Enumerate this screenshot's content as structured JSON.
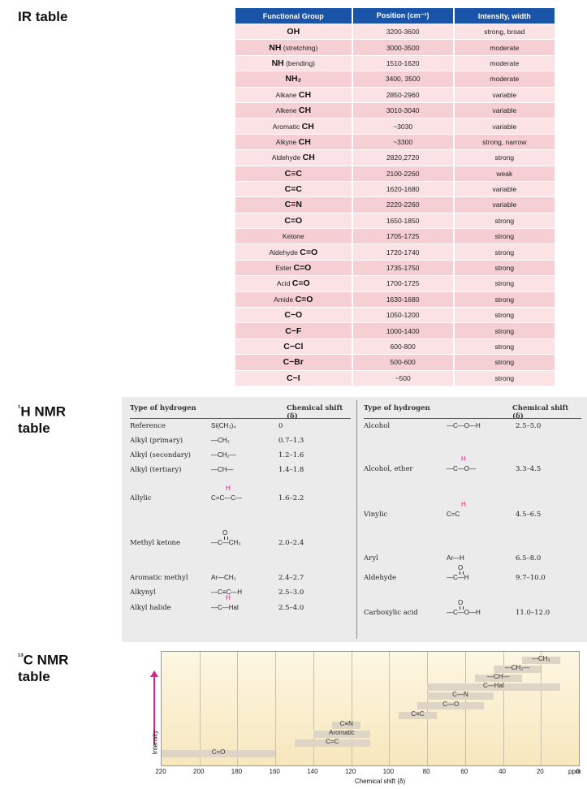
{
  "ir": {
    "title": "IR table",
    "headers": [
      "Functional Group",
      "Position (cm⁻¹)",
      "Intensity, width"
    ],
    "rows": [
      {
        "pre": "",
        "grp": "OH",
        "pos": "3200-3600",
        "int": "strong, broad"
      },
      {
        "pre": "",
        "grp": "NH",
        "post": " (stretching)",
        "pos": "3000-3500",
        "int": "moderate"
      },
      {
        "pre": "",
        "grp": "NH",
        "post": " (bending)",
        "pos": "1510-1620",
        "int": "moderate"
      },
      {
        "pre": "",
        "grp": "NH₂",
        "pos": "3400, 3500",
        "int": "moderate"
      },
      {
        "pre": "Alkane ",
        "grp": "CH",
        "pos": "2850-2960",
        "int": "variable"
      },
      {
        "pre": "Alkene ",
        "grp": "CH",
        "pos": "3010-3040",
        "int": "variable"
      },
      {
        "pre": "Aromatic ",
        "grp": "CH",
        "pos": "~3030",
        "int": "variable"
      },
      {
        "pre": "Alkyne ",
        "grp": "CH",
        "pos": "~3300",
        "int": "strong, narrow"
      },
      {
        "pre": "Aldehyde ",
        "grp": "CH",
        "pos": "2820,2720",
        "int": "strong"
      },
      {
        "pre": "",
        "grp": "C≡C",
        "pos": "2100-2260",
        "int": "weak"
      },
      {
        "pre": "",
        "grp": "C=C",
        "pos": "1620-1680",
        "int": "variable"
      },
      {
        "pre": "",
        "grp": "C≡N",
        "pos": "2220-2260",
        "int": "variable"
      },
      {
        "pre": "",
        "grp": "C=O",
        "pos": "1650-1850",
        "int": "strong"
      },
      {
        "pre": "Ketone",
        "grp": "",
        "pos": "1705-1725",
        "int": "strong"
      },
      {
        "pre": "Aldehyde ",
        "grp": "C=O",
        "pos": "1720-1740",
        "int": "strong"
      },
      {
        "pre": "Ester ",
        "grp": "C=O",
        "pos": "1735-1750",
        "int": "strong"
      },
      {
        "pre": "Acid ",
        "grp": "C=O",
        "pos": "1700-1725",
        "int": "strong"
      },
      {
        "pre": "Amide ",
        "grp": "C=O",
        "pos": "1630-1680",
        "int": "strong"
      },
      {
        "pre": "",
        "grp": "C−O",
        "pos": "1050-1200",
        "int": "strong"
      },
      {
        "pre": "",
        "grp": "C−F",
        "pos": "1000-1400",
        "int": "strong"
      },
      {
        "pre": "",
        "grp": "C−Cl",
        "pos": "600-800",
        "int": "strong"
      },
      {
        "pre": "",
        "grp": "C−Br",
        "pos": "500-600",
        "int": "strong"
      },
      {
        "pre": "",
        "grp": "C−I",
        "pos": "~500",
        "int": "strong"
      }
    ]
  },
  "hnmr": {
    "title_sup": "¹",
    "title_main": "H NMR",
    "title_line2": "table",
    "col_type": "Type of hydrogen",
    "col_shift": "Chemical shift (δ)",
    "left": [
      {
        "name": "Reference",
        "struct": "Si(CH₃)₄",
        "shift": "0"
      },
      {
        "name": "Alkyl (primary)",
        "struct": "—CH₃",
        "shift": "0.7–1.3"
      },
      {
        "name": "Alkyl (secondary)",
        "struct": "—CH₂—",
        "shift": "1.2–1.6"
      },
      {
        "name": "Alkyl (tertiary)",
        "struct": "—CH—",
        "shift": "1.4–1.8"
      },
      {
        "name": "Allylic",
        "struct": "C=C—C—",
        "struct_h": "H",
        "shift": "1.6–2.2"
      },
      {
        "name": "Methyl ketone",
        "struct": "—C—CH₃",
        "struct_top": "O",
        "shift": "2.0–2.4"
      },
      {
        "name": "Aromatic methyl",
        "struct": "Ar—CH₃",
        "shift": "2.4–2.7"
      },
      {
        "name": "Alkynyl",
        "struct": "—C≡C—H",
        "shift": "2.5–3.0"
      },
      {
        "name": "Alkyl halide",
        "struct": "—C—Hal",
        "struct_h": "H",
        "shift": "2.5–4.0"
      }
    ],
    "right": [
      {
        "name": "Alcohol",
        "struct": "—C—O—H",
        "shift": "2.5–5.0"
      },
      {
        "name": "Alcohol, ether",
        "struct": "—C—O—",
        "struct_h": "H",
        "shift": "3.3–4.5"
      },
      {
        "name": "Vinylic",
        "struct": "C=C",
        "struct_h": "H",
        "shift": "4.5–6.5"
      },
      {
        "name": "Aryl",
        "struct": "Ar—H",
        "shift": "6.5–8.0"
      },
      {
        "name": "Aldehyde",
        "struct": "—C—H",
        "struct_top": "O",
        "shift": "9.7–10.0"
      },
      {
        "name": "Carboxylic acid",
        "struct": "—C—O—H",
        "struct_top": "O",
        "shift": "11.0–12.0"
      }
    ]
  },
  "cnmr": {
    "title_sup": "¹³",
    "title_main": "C NMR",
    "title_line2": "table",
    "ylabel": "Intensity",
    "xlabel": "Chemical shift (δ)",
    "unit": "ppm"
  },
  "chart_data": {
    "type": "bar",
    "orientation": "horizontal-range",
    "title": "13C NMR table",
    "xlabel": "Chemical shift (δ)",
    "ylabel": "Intensity",
    "xlim": [
      220,
      0
    ],
    "xticks": [
      220,
      200,
      180,
      160,
      140,
      120,
      100,
      80,
      60,
      40,
      20,
      0
    ],
    "ranges": [
      {
        "label": "—CH₃",
        "from": 30,
        "to": 10
      },
      {
        "label": "—CH₂—",
        "from": 45,
        "to": 20
      },
      {
        "label": "—CH—",
        "from": 55,
        "to": 30
      },
      {
        "label": "C—Hal",
        "from": 80,
        "to": 10
      },
      {
        "label": "C—N",
        "from": 80,
        "to": 45
      },
      {
        "label": "C—O",
        "from": 85,
        "to": 50
      },
      {
        "label": "C≡C",
        "from": 95,
        "to": 75
      },
      {
        "label": "C≡N",
        "from": 130,
        "to": 115
      },
      {
        "label": "Aromatic",
        "from": 140,
        "to": 110
      },
      {
        "label": "C=C",
        "from": 150,
        "to": 110
      },
      {
        "label": "C=O",
        "from": 220,
        "to": 160
      }
    ]
  }
}
